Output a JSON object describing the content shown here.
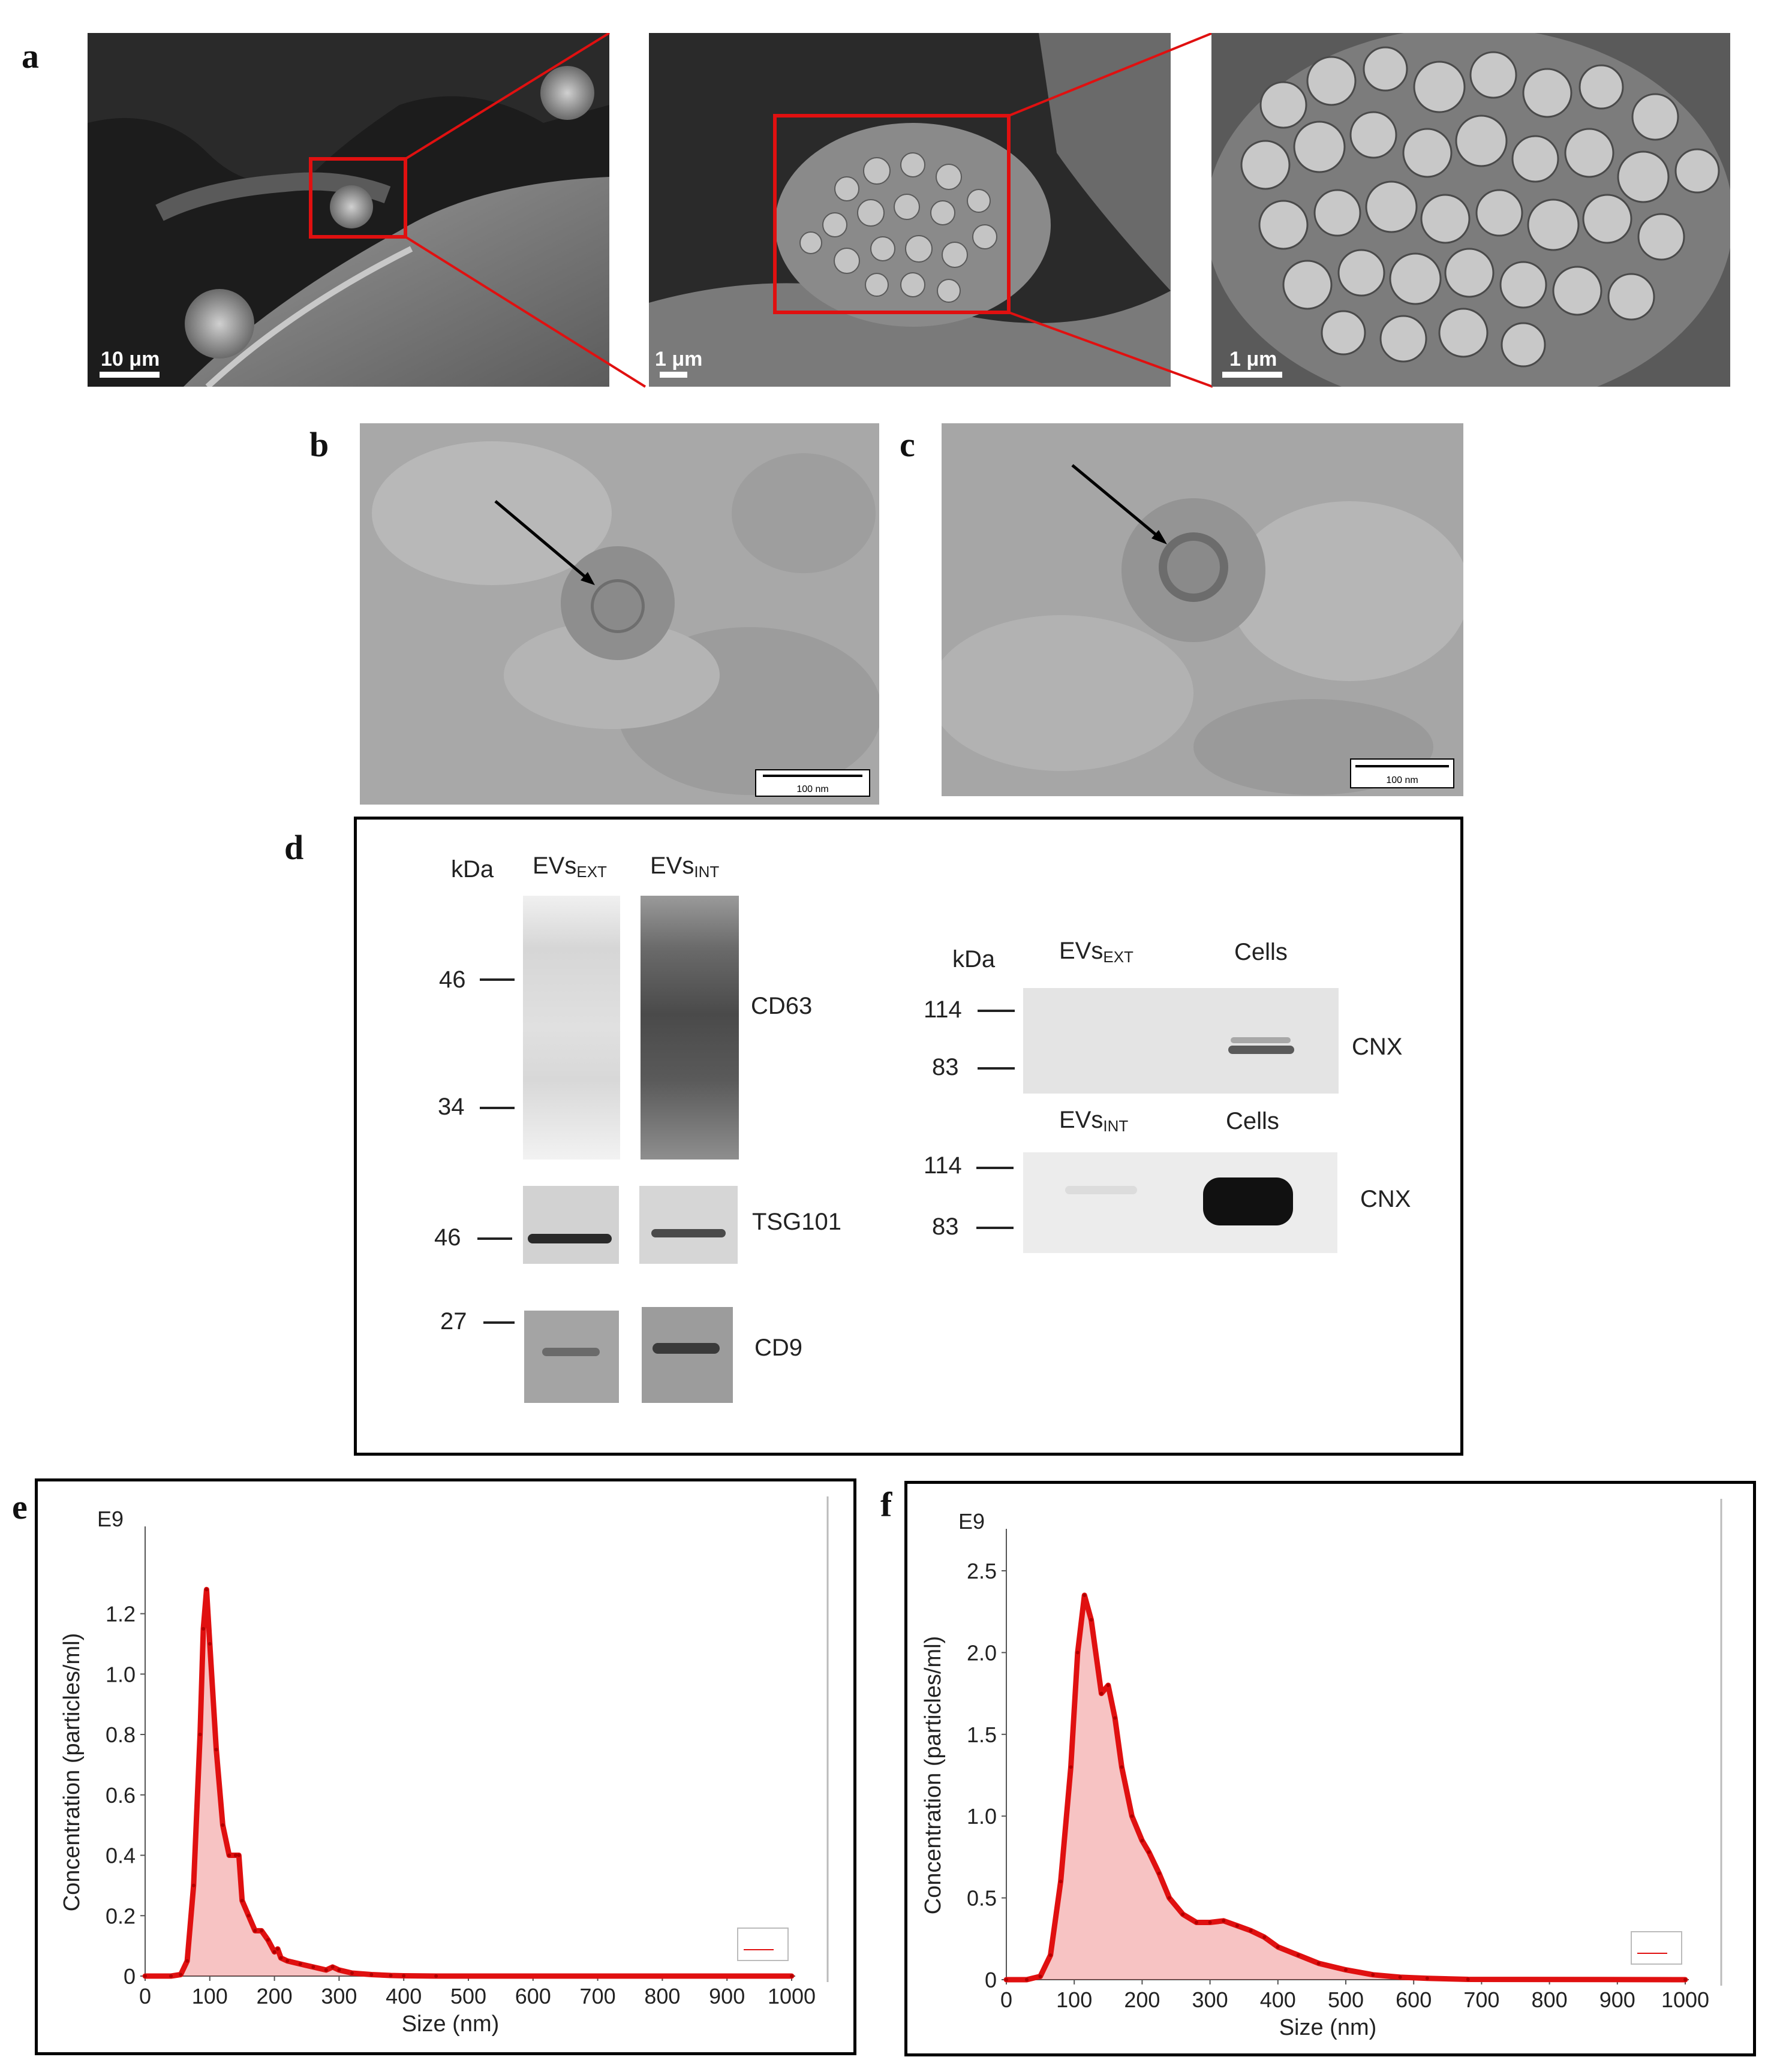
{
  "panels": {
    "a": "a",
    "b": "b",
    "c": "c",
    "d": "d",
    "e": "e",
    "f": "f"
  },
  "panel_a": {
    "scalebars": [
      "10 μm",
      "1 μm",
      "1 μm"
    ]
  },
  "panel_b": {
    "scalebar": "100 nm"
  },
  "panel_c": {
    "scalebar": "100 nm"
  },
  "panel_d": {
    "left": {
      "kda_label": "kDa",
      "lane1_main": "EVs",
      "lane1_sub": "EXT",
      "lane2_main": "EVs",
      "lane2_sub": "INT",
      "markers": [
        "46",
        "34",
        "46",
        "27"
      ],
      "proteins": [
        "CD63",
        "TSG101",
        "CD9"
      ]
    },
    "right": {
      "kda_label": "kDa",
      "top_lane1_main": "EVs",
      "top_lane1_sub": "EXT",
      "top_lane2": "Cells",
      "bottom_lane1_main": "EVs",
      "bottom_lane1_sub": "INT",
      "bottom_lane2": "Cells",
      "markers": [
        "114",
        "83",
        "114",
        "83"
      ],
      "proteins": [
        "CNX",
        "CNX"
      ]
    }
  },
  "chart_data": [
    {
      "type": "area",
      "panel": "e",
      "ylabel": "Concentration (particles/ml)",
      "xlabel": "Size (nm)",
      "y_multiplier_label": "E9",
      "xlim": [
        0,
        1000
      ],
      "ylim": [
        0,
        1.35
      ],
      "xticks": [
        "0",
        "100",
        "200",
        "300",
        "400",
        "500",
        "600",
        "700",
        "800",
        "900",
        "1000"
      ],
      "yticks": [
        "0",
        "0.2",
        "0.4",
        "0.6",
        "0.8",
        "1.0",
        "1.2"
      ],
      "color": "#e01010",
      "series": [
        {
          "x": [
            0,
            40,
            55,
            65,
            75,
            85,
            90,
            95,
            100,
            110,
            120,
            130,
            140,
            145,
            150,
            160,
            170,
            180,
            190,
            200,
            205,
            210,
            220,
            240,
            260,
            280,
            290,
            300,
            320,
            350,
            380,
            400,
            450,
            1000
          ],
          "y": [
            0,
            0,
            0.005,
            0.05,
            0.3,
            0.8,
            1.15,
            1.28,
            1.1,
            0.75,
            0.5,
            0.4,
            0.4,
            0.4,
            0.25,
            0.2,
            0.15,
            0.15,
            0.12,
            0.08,
            0.09,
            0.06,
            0.05,
            0.04,
            0.03,
            0.02,
            0.03,
            0.02,
            0.01,
            0.005,
            0.002,
            0.001,
            0,
            0
          ]
        }
      ]
    },
    {
      "type": "area",
      "panel": "f",
      "ylabel": "Concentration (particles/ml)",
      "xlabel": "Size (nm)",
      "y_multiplier_label": "E9",
      "xlim": [
        0,
        1000
      ],
      "ylim": [
        0,
        2.5
      ],
      "xticks": [
        "0",
        "100",
        "200",
        "300",
        "400",
        "500",
        "600",
        "700",
        "800",
        "900",
        "1000"
      ],
      "yticks": [
        "0",
        "0.5",
        "1.0",
        "1.5",
        "2.0",
        "2.5"
      ],
      "color": "#e01010",
      "series": [
        {
          "x": [
            0,
            30,
            50,
            65,
            80,
            95,
            105,
            115,
            125,
            140,
            150,
            160,
            170,
            185,
            200,
            210,
            225,
            240,
            260,
            280,
            300,
            320,
            340,
            360,
            380,
            400,
            430,
            460,
            500,
            540,
            580,
            620,
            680,
            1000
          ],
          "y": [
            0,
            0,
            0.02,
            0.15,
            0.6,
            1.3,
            2.0,
            2.35,
            2.2,
            1.75,
            1.8,
            1.6,
            1.3,
            1.0,
            0.85,
            0.78,
            0.65,
            0.5,
            0.4,
            0.35,
            0.35,
            0.36,
            0.33,
            0.3,
            0.26,
            0.2,
            0.15,
            0.1,
            0.06,
            0.03,
            0.015,
            0.008,
            0.002,
            0
          ]
        }
      ]
    }
  ]
}
